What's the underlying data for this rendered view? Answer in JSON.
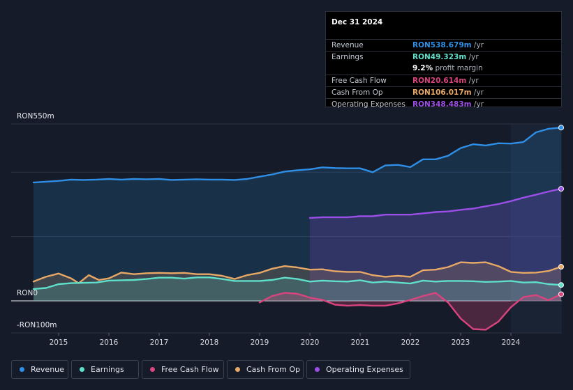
{
  "chart_data": {
    "type": "area",
    "title": "",
    "xlabel": "",
    "ylabel": "",
    "ylim": [
      -100,
      550
    ],
    "y_labels": {
      "top": "RON550m",
      "zero": "RON0",
      "bottom": "-RON100m"
    },
    "x_ticks": [
      "2015",
      "2016",
      "2017",
      "2018",
      "2019",
      "2020",
      "2021",
      "2022",
      "2023",
      "2024"
    ],
    "xlim": [
      2014.5,
      2025.0
    ],
    "forecast_start": 2024.0,
    "series": [
      {
        "name": "Revenue",
        "color": "#2f8fe6",
        "fill": true,
        "points": [
          [
            2014.5,
            368
          ],
          [
            2015.0,
            373
          ],
          [
            2015.25,
            377
          ],
          [
            2015.5,
            376
          ],
          [
            2015.75,
            377
          ],
          [
            2016.0,
            379
          ],
          [
            2016.25,
            377
          ],
          [
            2016.5,
            379
          ],
          [
            2016.75,
            378
          ],
          [
            2017.0,
            379
          ],
          [
            2017.25,
            376
          ],
          [
            2017.5,
            377
          ],
          [
            2017.75,
            378
          ],
          [
            2018.0,
            377
          ],
          [
            2018.25,
            377
          ],
          [
            2018.5,
            376
          ],
          [
            2018.75,
            379
          ],
          [
            2019.0,
            386
          ],
          [
            2019.25,
            393
          ],
          [
            2019.5,
            402
          ],
          [
            2019.75,
            406
          ],
          [
            2020.0,
            409
          ],
          [
            2020.25,
            415
          ],
          [
            2020.5,
            413
          ],
          [
            2020.75,
            412
          ],
          [
            2021.0,
            412
          ],
          [
            2021.25,
            400
          ],
          [
            2021.5,
            421
          ],
          [
            2021.75,
            423
          ],
          [
            2022.0,
            416
          ],
          [
            2022.25,
            440
          ],
          [
            2022.5,
            440
          ],
          [
            2022.75,
            451
          ],
          [
            2023.0,
            475
          ],
          [
            2023.25,
            487
          ],
          [
            2023.5,
            483
          ],
          [
            2023.75,
            490
          ],
          [
            2024.0,
            489
          ],
          [
            2024.25,
            494
          ],
          [
            2024.5,
            524
          ],
          [
            2024.75,
            535
          ],
          [
            2025.0,
            538.679
          ]
        ]
      },
      {
        "name": "Operating Expenses",
        "color": "#9b4ee8",
        "fill": true,
        "points": [
          [
            2020.0,
            258
          ],
          [
            2020.25,
            260
          ],
          [
            2020.5,
            260
          ],
          [
            2020.75,
            260
          ],
          [
            2021.0,
            263
          ],
          [
            2021.25,
            263
          ],
          [
            2021.5,
            268
          ],
          [
            2021.75,
            268
          ],
          [
            2022.0,
            268
          ],
          [
            2022.25,
            272
          ],
          [
            2022.5,
            276
          ],
          [
            2022.75,
            278
          ],
          [
            2023.0,
            283
          ],
          [
            2023.25,
            287
          ],
          [
            2023.5,
            294
          ],
          [
            2023.75,
            301
          ],
          [
            2024.0,
            310
          ],
          [
            2024.25,
            321
          ],
          [
            2024.5,
            330
          ],
          [
            2024.75,
            340
          ],
          [
            2025.0,
            348.483
          ]
        ]
      },
      {
        "name": "Cash From Op",
        "color": "#e8a866",
        "fill": true,
        "points": [
          [
            2014.5,
            60
          ],
          [
            2014.75,
            75
          ],
          [
            2015.0,
            85
          ],
          [
            2015.25,
            70
          ],
          [
            2015.4,
            55
          ],
          [
            2015.6,
            80
          ],
          [
            2015.8,
            65
          ],
          [
            2016.0,
            70
          ],
          [
            2016.25,
            88
          ],
          [
            2016.5,
            83
          ],
          [
            2016.75,
            86
          ],
          [
            2017.0,
            87
          ],
          [
            2017.25,
            86
          ],
          [
            2017.5,
            87
          ],
          [
            2017.75,
            83
          ],
          [
            2018.0,
            83
          ],
          [
            2018.25,
            78
          ],
          [
            2018.5,
            68
          ],
          [
            2018.75,
            80
          ],
          [
            2019.0,
            87
          ],
          [
            2019.25,
            100
          ],
          [
            2019.5,
            108
          ],
          [
            2019.75,
            104
          ],
          [
            2020.0,
            97
          ],
          [
            2020.25,
            98
          ],
          [
            2020.5,
            92
          ],
          [
            2020.75,
            90
          ],
          [
            2021.0,
            90
          ],
          [
            2021.25,
            80
          ],
          [
            2021.5,
            75
          ],
          [
            2021.75,
            78
          ],
          [
            2022.0,
            75
          ],
          [
            2022.25,
            95
          ],
          [
            2022.5,
            97
          ],
          [
            2022.75,
            105
          ],
          [
            2023.0,
            120
          ],
          [
            2023.25,
            118
          ],
          [
            2023.5,
            120
          ],
          [
            2023.75,
            108
          ],
          [
            2024.0,
            90
          ],
          [
            2024.25,
            87
          ],
          [
            2024.5,
            88
          ],
          [
            2024.75,
            93
          ],
          [
            2025.0,
            106.017
          ]
        ]
      },
      {
        "name": "Earnings",
        "color": "#5fe0cb",
        "fill": true,
        "points": [
          [
            2014.5,
            37
          ],
          [
            2014.75,
            40
          ],
          [
            2015.0,
            52
          ],
          [
            2015.25,
            55
          ],
          [
            2015.5,
            56
          ],
          [
            2015.75,
            57
          ],
          [
            2016.0,
            63
          ],
          [
            2016.25,
            64
          ],
          [
            2016.5,
            65
          ],
          [
            2016.75,
            68
          ],
          [
            2017.0,
            72
          ],
          [
            2017.25,
            72
          ],
          [
            2017.5,
            69
          ],
          [
            2017.75,
            73
          ],
          [
            2018.0,
            73
          ],
          [
            2018.25,
            68
          ],
          [
            2018.5,
            62
          ],
          [
            2018.75,
            62
          ],
          [
            2019.0,
            62
          ],
          [
            2019.25,
            65
          ],
          [
            2019.5,
            72
          ],
          [
            2019.75,
            68
          ],
          [
            2020.0,
            60
          ],
          [
            2020.25,
            63
          ],
          [
            2020.5,
            61
          ],
          [
            2020.75,
            60
          ],
          [
            2021.0,
            64
          ],
          [
            2021.25,
            57
          ],
          [
            2021.5,
            60
          ],
          [
            2021.75,
            57
          ],
          [
            2022.0,
            54
          ],
          [
            2022.25,
            63
          ],
          [
            2022.5,
            60
          ],
          [
            2022.75,
            62
          ],
          [
            2023.0,
            62
          ],
          [
            2023.25,
            61
          ],
          [
            2023.5,
            59
          ],
          [
            2023.75,
            60
          ],
          [
            2024.0,
            62
          ],
          [
            2024.25,
            57
          ],
          [
            2024.5,
            58
          ],
          [
            2024.75,
            52
          ],
          [
            2025.0,
            49.323
          ]
        ]
      },
      {
        "name": "Free Cash Flow",
        "color": "#d9447f",
        "fill": true,
        "points": [
          [
            2019.0,
            -5
          ],
          [
            2019.25,
            15
          ],
          [
            2019.5,
            25
          ],
          [
            2019.75,
            22
          ],
          [
            2020.0,
            10
          ],
          [
            2020.25,
            3
          ],
          [
            2020.5,
            -12
          ],
          [
            2020.75,
            -15
          ],
          [
            2021.0,
            -13
          ],
          [
            2021.25,
            -15
          ],
          [
            2021.5,
            -15
          ],
          [
            2021.75,
            -8
          ],
          [
            2022.0,
            3
          ],
          [
            2022.25,
            15
          ],
          [
            2022.5,
            25
          ],
          [
            2022.75,
            -5
          ],
          [
            2023.0,
            -55
          ],
          [
            2023.25,
            -88
          ],
          [
            2023.5,
            -90
          ],
          [
            2023.75,
            -65
          ],
          [
            2024.0,
            -20
          ],
          [
            2024.25,
            12
          ],
          [
            2024.5,
            18
          ],
          [
            2024.75,
            2
          ],
          [
            2025.0,
            20.614
          ]
        ]
      }
    ]
  },
  "tooltip": {
    "date": "Dec 31 2024",
    "rows": [
      {
        "label": "Revenue",
        "value": "RON538.679m",
        "unit": " /yr",
        "color": "#2f8fe6"
      },
      {
        "label": "Earnings",
        "value": "RON49.323m",
        "unit": " /yr",
        "color": "#5fe0cb"
      },
      {
        "label": "",
        "value": "9.2%",
        "unit": " profit margin",
        "color": "#ffffff"
      },
      {
        "label": "Free Cash Flow",
        "value": "RON20.614m",
        "unit": " /yr",
        "color": "#d9447f"
      },
      {
        "label": "Cash From Op",
        "value": "RON106.017m",
        "unit": " /yr",
        "color": "#e8a866"
      },
      {
        "label": "Operating Expenses",
        "value": "RON348.483m",
        "unit": " /yr",
        "color": "#9b4ee8"
      }
    ]
  },
  "legend": [
    {
      "label": "Revenue",
      "color": "#2f8fe6"
    },
    {
      "label": "Earnings",
      "color": "#5fe0cb"
    },
    {
      "label": "Free Cash Flow",
      "color": "#d9447f"
    },
    {
      "label": "Cash From Op",
      "color": "#e8a866"
    },
    {
      "label": "Operating Expenses",
      "color": "#9b4ee8"
    }
  ]
}
